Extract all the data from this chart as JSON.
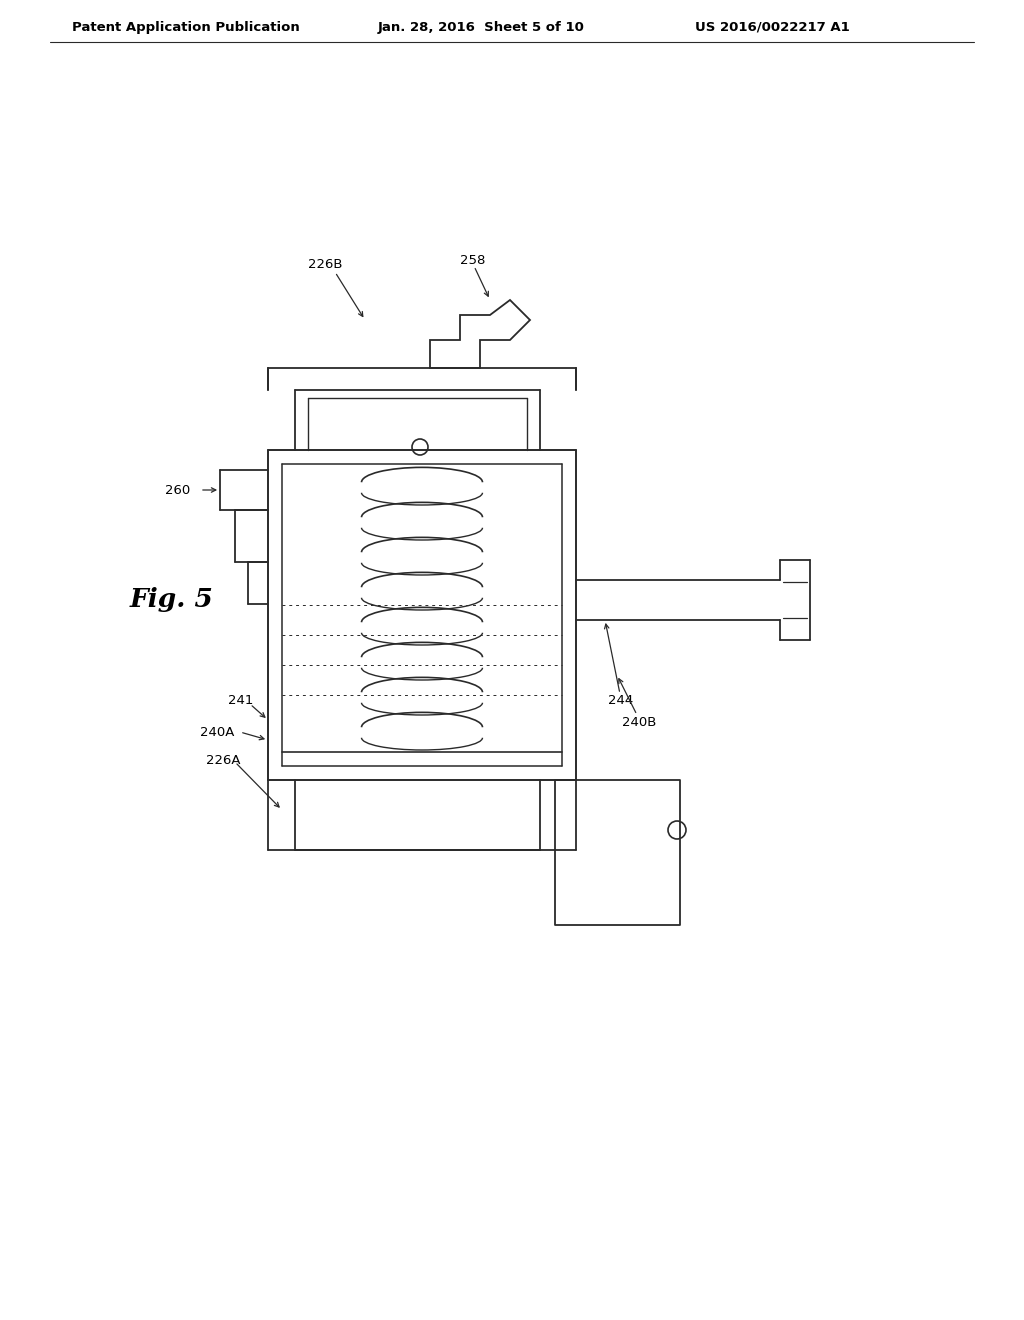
{
  "background_color": "#ffffff",
  "line_color": "#2a2a2a",
  "header_left": "Patent Application Publication",
  "header_center": "Jan. 28, 2016  Sheet 5 of 10",
  "header_right": "US 2016/0022217 A1",
  "fig_label": "Fig. 5"
}
